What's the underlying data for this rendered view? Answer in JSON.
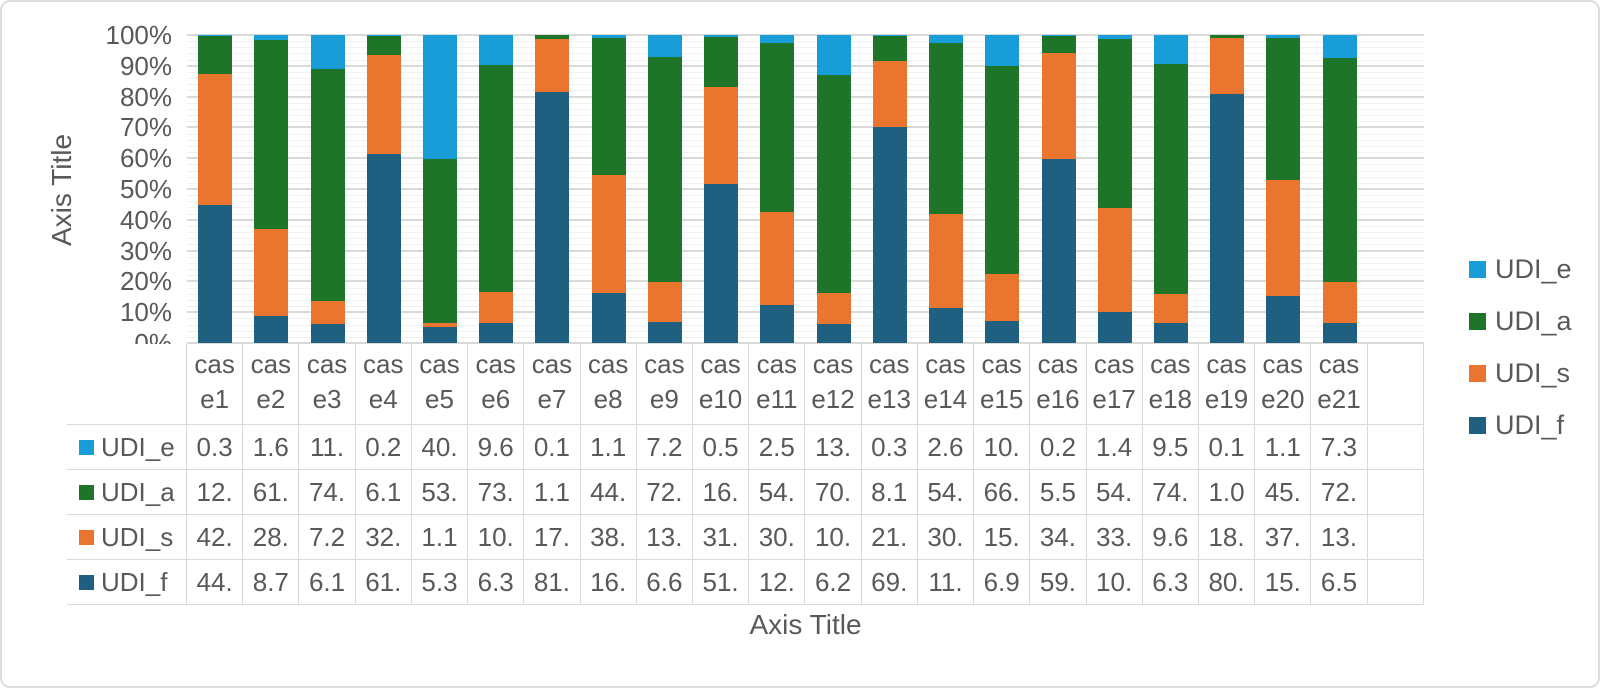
{
  "chart": {
    "y_axis_title": "Axis Title",
    "x_axis_title": "Axis Title",
    "y_ticks": [
      "100%",
      "90%",
      "80%",
      "70%",
      "60%",
      "50%",
      "40%",
      "30%",
      "20%",
      "10%",
      "0%"
    ]
  },
  "chart_data": {
    "type": "bar",
    "subtype": "stacked-100-percent-column",
    "categories": [
      "case1",
      "case2",
      "case3",
      "case4",
      "case5",
      "case6",
      "case7",
      "case8",
      "case9",
      "case10",
      "case11",
      "case12",
      "case13",
      "case14",
      "case15",
      "case16",
      "case17",
      "case18",
      "case19",
      "case20",
      "case21"
    ],
    "series": [
      {
        "name": "UDI_f",
        "color": "#1F6081",
        "values": [
          44,
          8.7,
          6.1,
          61,
          5.3,
          6.3,
          81,
          16,
          6.6,
          51,
          12,
          6.2,
          69,
          11,
          6.9,
          59,
          10,
          6.3,
          80,
          15,
          6.5
        ]
      },
      {
        "name": "UDI_s",
        "color": "#E9752F",
        "values": [
          42,
          28,
          7.2,
          32,
          1.1,
          10,
          17,
          38,
          13,
          31,
          30,
          10,
          21,
          30,
          15,
          34,
          33,
          9.6,
          18,
          37,
          13
        ]
      },
      {
        "name": "UDI_a",
        "color": "#1E7428",
        "values": [
          12,
          61,
          74,
          6.1,
          53,
          73,
          1.1,
          44,
          72,
          16,
          54,
          70,
          8.1,
          54,
          66,
          5.5,
          54,
          74,
          1.0,
          45,
          72
        ]
      },
      {
        "name": "UDI_e",
        "color": "#189DD8",
        "values": [
          0.3,
          1.6,
          11,
          0.2,
          40,
          9.6,
          0.1,
          1.1,
          7.2,
          0.5,
          2.5,
          13,
          0.3,
          2.6,
          10,
          0.2,
          1.4,
          9.5,
          0.1,
          1.1,
          7.3
        ]
      }
    ],
    "stack_order_bottom_to_top": [
      "UDI_f",
      "UDI_s",
      "UDI_a",
      "UDI_e"
    ],
    "legend_order_top_to_bottom": [
      "UDI_e",
      "UDI_a",
      "UDI_s",
      "UDI_f"
    ],
    "legend_position": "right",
    "title": "",
    "xlabel": "Axis Title",
    "ylabel": "Axis Title",
    "ylim": [
      0,
      100
    ],
    "y_tick_format": "percent",
    "gridlines": {
      "major_interval_pct": 10,
      "minor_interval_pct": 2
    },
    "trailing_empty_category_slot": true
  },
  "table": {
    "rows": [
      {
        "label": "UDI_e",
        "color": "#189DD8",
        "values": [
          "0.3",
          "1.6",
          "11.",
          "0.2",
          "40.",
          "9.6",
          "0.1",
          "1.1",
          "7.2",
          "0.5",
          "2.5",
          "13.",
          "0.3",
          "2.6",
          "10.",
          "0.2",
          "1.4",
          "9.5",
          "0.1",
          "1.1",
          "7.3"
        ]
      },
      {
        "label": "UDI_a",
        "color": "#1E7428",
        "values": [
          "12.",
          "61.",
          "74.",
          "6.1",
          "53.",
          "73.",
          "1.1",
          "44.",
          "72.",
          "16.",
          "54.",
          "70.",
          "8.1",
          "54.",
          "66.",
          "5.5",
          "54.",
          "74.",
          "1.0",
          "45.",
          "72."
        ]
      },
      {
        "label": "UDI_s",
        "color": "#E9752F",
        "values": [
          "42.",
          "28.",
          "7.2",
          "32.",
          "1.1",
          "10.",
          "17.",
          "38.",
          "13.",
          "31.",
          "30.",
          "10.",
          "21.",
          "30.",
          "15.",
          "34.",
          "33.",
          "9.6",
          "18.",
          "37.",
          "13."
        ]
      },
      {
        "label": "UDI_f",
        "color": "#1F6081",
        "values": [
          "44.",
          "8.7",
          "6.1",
          "61.",
          "5.3",
          "6.3",
          "81.",
          "16.",
          "6.6",
          "51.",
          "12.",
          "6.2",
          "69.",
          "11.",
          "6.9",
          "59.",
          "10.",
          "6.3",
          "80.",
          "15.",
          "6.5"
        ]
      }
    ]
  },
  "colors": {
    "text": "#595959",
    "gridline_major": "#D9D9D9",
    "gridline_minor": "#F1F1F1",
    "table_border": "#D9D9D9",
    "canvas_border": "#DCDCDC"
  }
}
